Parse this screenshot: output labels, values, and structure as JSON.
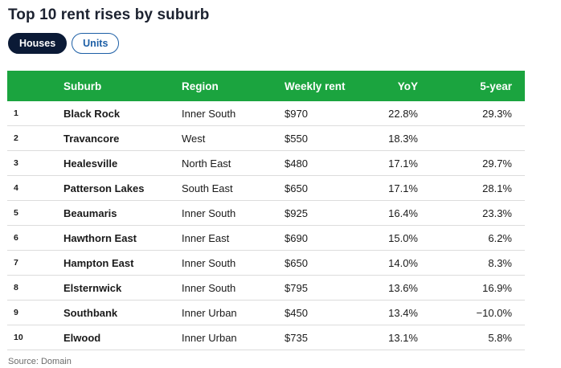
{
  "title": "Top 10 rent rises by suburb",
  "tabs": [
    {
      "label": "Houses",
      "active": true
    },
    {
      "label": "Units",
      "active": false
    }
  ],
  "table": {
    "headers": {
      "rank": "",
      "suburb": "Suburb",
      "region": "Region",
      "rent": "Weekly rent",
      "yoy": "YoY",
      "five": "5-year"
    },
    "rows": [
      {
        "rank": "1",
        "suburb": "Black Rock",
        "region": "Inner South",
        "rent": "$970",
        "yoy": "22.8%",
        "five": "29.3%"
      },
      {
        "rank": "2",
        "suburb": "Travancore",
        "region": "West",
        "rent": "$550",
        "yoy": "18.3%",
        "five": ""
      },
      {
        "rank": "3",
        "suburb": "Healesville",
        "region": "North East",
        "rent": "$480",
        "yoy": "17.1%",
        "five": "29.7%"
      },
      {
        "rank": "4",
        "suburb": "Patterson Lakes",
        "region": "South East",
        "rent": "$650",
        "yoy": "17.1%",
        "five": "28.1%"
      },
      {
        "rank": "5",
        "suburb": "Beaumaris",
        "region": "Inner South",
        "rent": "$925",
        "yoy": "16.4%",
        "five": "23.3%"
      },
      {
        "rank": "6",
        "suburb": "Hawthorn East",
        "region": "Inner East",
        "rent": "$690",
        "yoy": "15.0%",
        "five": "6.2%"
      },
      {
        "rank": "7",
        "suburb": "Hampton East",
        "region": "Inner South",
        "rent": "$650",
        "yoy": "14.0%",
        "five": "8.3%"
      },
      {
        "rank": "8",
        "suburb": "Elsternwick",
        "region": "Inner South",
        "rent": "$795",
        "yoy": "13.6%",
        "five": "16.9%"
      },
      {
        "rank": "9",
        "suburb": "Southbank",
        "region": "Inner Urban",
        "rent": "$450",
        "yoy": "13.4%",
        "five": "−10.0%"
      },
      {
        "rank": "10",
        "suburb": "Elwood",
        "region": "Inner Urban",
        "rent": "$735",
        "yoy": "13.1%",
        "five": "5.8%"
      }
    ]
  },
  "source": "Source: Domain",
  "colors": {
    "header_green": "#1ba43f",
    "active_tab_bg": "#0b1a36",
    "inactive_tab_border": "#1d5fa6"
  }
}
